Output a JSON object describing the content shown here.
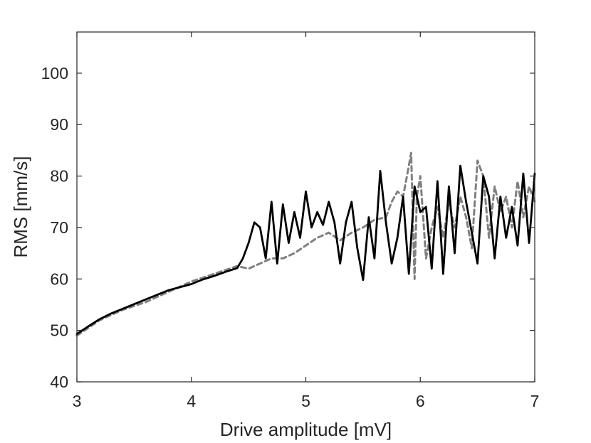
{
  "chart_data": {
    "type": "line",
    "title": "",
    "xlabel": "Drive amplitude [mV]",
    "ylabel": "RMS [mm/s]",
    "xlim": [
      3,
      7
    ],
    "ylim": [
      40,
      108
    ],
    "xticks": [
      3,
      4,
      5,
      6,
      7
    ],
    "yticks": [
      40,
      50,
      60,
      70,
      80,
      90,
      100
    ],
    "grid": false,
    "legend": "none",
    "series": [
      {
        "style": "solid",
        "color": "#000000",
        "x": [
          3.0,
          3.1,
          3.2,
          3.3,
          3.4,
          3.5,
          3.6,
          3.7,
          3.8,
          3.9,
          4.0,
          4.1,
          4.2,
          4.3,
          4.4,
          4.45,
          4.5,
          4.55,
          4.6,
          4.65,
          4.7,
          4.75,
          4.8,
          4.85,
          4.9,
          4.95,
          5.0,
          5.05,
          5.1,
          5.15,
          5.2,
          5.25,
          5.3,
          5.35,
          5.4,
          5.45,
          5.5,
          5.55,
          5.6,
          5.65,
          5.7,
          5.75,
          5.8,
          5.85,
          5.9,
          5.95,
          6.0,
          6.05,
          6.1,
          6.15,
          6.2,
          6.25,
          6.3,
          6.35,
          6.4,
          6.45,
          6.5,
          6.55,
          6.6,
          6.65,
          6.7,
          6.75,
          6.8,
          6.85,
          6.9,
          6.95,
          7.0
        ],
        "y": [
          49.3,
          50.8,
          52.2,
          53.3,
          54.2,
          55.1,
          56.0,
          56.9,
          57.8,
          58.4,
          59.0,
          59.9,
          60.6,
          61.4,
          62.1,
          64.0,
          67.0,
          71.0,
          70.0,
          64.0,
          75.0,
          63.0,
          74.5,
          67.0,
          73.0,
          68.0,
          77.0,
          70.0,
          73.0,
          70.5,
          75.0,
          71.0,
          63.0,
          71.0,
          75.0,
          66.0,
          59.8,
          72.0,
          64.0,
          81.0,
          71.0,
          63.0,
          68.0,
          76.0,
          61.0,
          78.0,
          73.0,
          74.0,
          62.0,
          79.0,
          61.0,
          78.0,
          65.0,
          82.0,
          75.0,
          69.0,
          63.0,
          80.0,
          76.0,
          64.0,
          76.0,
          68.0,
          74.0,
          66.5,
          80.5,
          67.0,
          80.5
        ]
      },
      {
        "style": "dashed",
        "color": "#808080",
        "x": [
          3.0,
          3.2,
          3.4,
          3.6,
          3.8,
          4.0,
          4.2,
          4.4,
          4.5,
          4.6,
          4.7,
          4.8,
          4.9,
          5.0,
          5.1,
          5.2,
          5.3,
          5.4,
          5.5,
          5.6,
          5.7,
          5.75,
          5.8,
          5.85,
          5.9,
          5.92,
          5.95,
          5.97,
          6.0,
          6.05,
          6.1,
          6.15,
          6.2,
          6.25,
          6.3,
          6.35,
          6.4,
          6.45,
          6.5,
          6.55,
          6.6,
          6.65,
          6.7,
          6.75,
          6.8,
          6.85,
          6.9,
          6.95,
          7.0
        ],
        "y": [
          49.0,
          52.0,
          54.0,
          55.5,
          57.5,
          59.5,
          61.0,
          62.5,
          62.0,
          63.0,
          64.0,
          64.0,
          65.0,
          66.5,
          68.0,
          69.0,
          67.5,
          69.0,
          70.0,
          71.5,
          72.0,
          75.0,
          77.0,
          76.0,
          82.0,
          84.5,
          60.0,
          76.0,
          80.0,
          64.0,
          70.0,
          74.0,
          68.0,
          75.0,
          70.0,
          76.0,
          72.0,
          66.0,
          83.0,
          80.0,
          68.0,
          78.0,
          73.0,
          76.0,
          70.0,
          79.0,
          72.0,
          78.0,
          75.0
        ]
      }
    ]
  }
}
